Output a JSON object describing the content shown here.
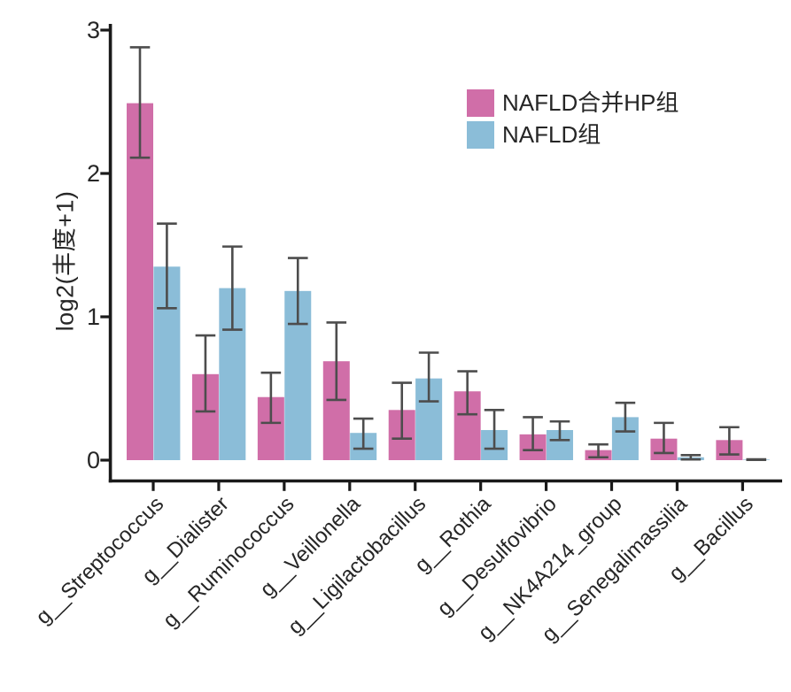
{
  "figure": {
    "background": "#ffffff",
    "text_color": "#262626",
    "axis_color": "#1a1a1a"
  },
  "chart_data": {
    "type": "bar",
    "title": "",
    "xlabel": "",
    "ylabel": "log2(丰度+1)",
    "ylim": [
      0,
      3
    ],
    "yticks": [
      0,
      1,
      2,
      3
    ],
    "grid": false,
    "bar_mode": "grouped",
    "legend_position": "upper-right-inside",
    "error_bars": true,
    "error_color": "#4d4d4d",
    "categories": [
      "g__Streptococcus",
      "g__Dialister",
      "g__Ruminococcus",
      "g__Veillonella",
      "g__Ligilactobacillus",
      "g__Rothia",
      "g__Desulfovibrio",
      "g__NK4A214_group",
      "g__Senegalimassilia",
      "g__Bacillus"
    ],
    "series": [
      {
        "name": "NAFLD合并HP组",
        "color": "#d06ea8",
        "values": [
          2.49,
          0.6,
          0.44,
          0.69,
          0.35,
          0.48,
          0.18,
          0.07,
          0.15,
          0.14
        ],
        "err_low": [
          2.11,
          0.34,
          0.26,
          0.42,
          0.15,
          0.32,
          0.07,
          0.02,
          0.05,
          0.04
        ],
        "err_high": [
          2.88,
          0.87,
          0.61,
          0.96,
          0.54,
          0.62,
          0.3,
          0.11,
          0.26,
          0.23
        ]
      },
      {
        "name": "NAFLD组",
        "color": "#8bbdd8",
        "values": [
          1.35,
          1.2,
          1.18,
          0.19,
          0.57,
          0.21,
          0.21,
          0.3,
          0.02,
          0.004
        ],
        "err_low": [
          1.06,
          0.91,
          0.95,
          0.08,
          0.41,
          0.08,
          0.14,
          0.2,
          0.005,
          0.002
        ],
        "err_high": [
          1.65,
          1.49,
          1.41,
          0.29,
          0.75,
          0.35,
          0.27,
          0.4,
          0.035,
          0.006
        ]
      }
    ]
  }
}
